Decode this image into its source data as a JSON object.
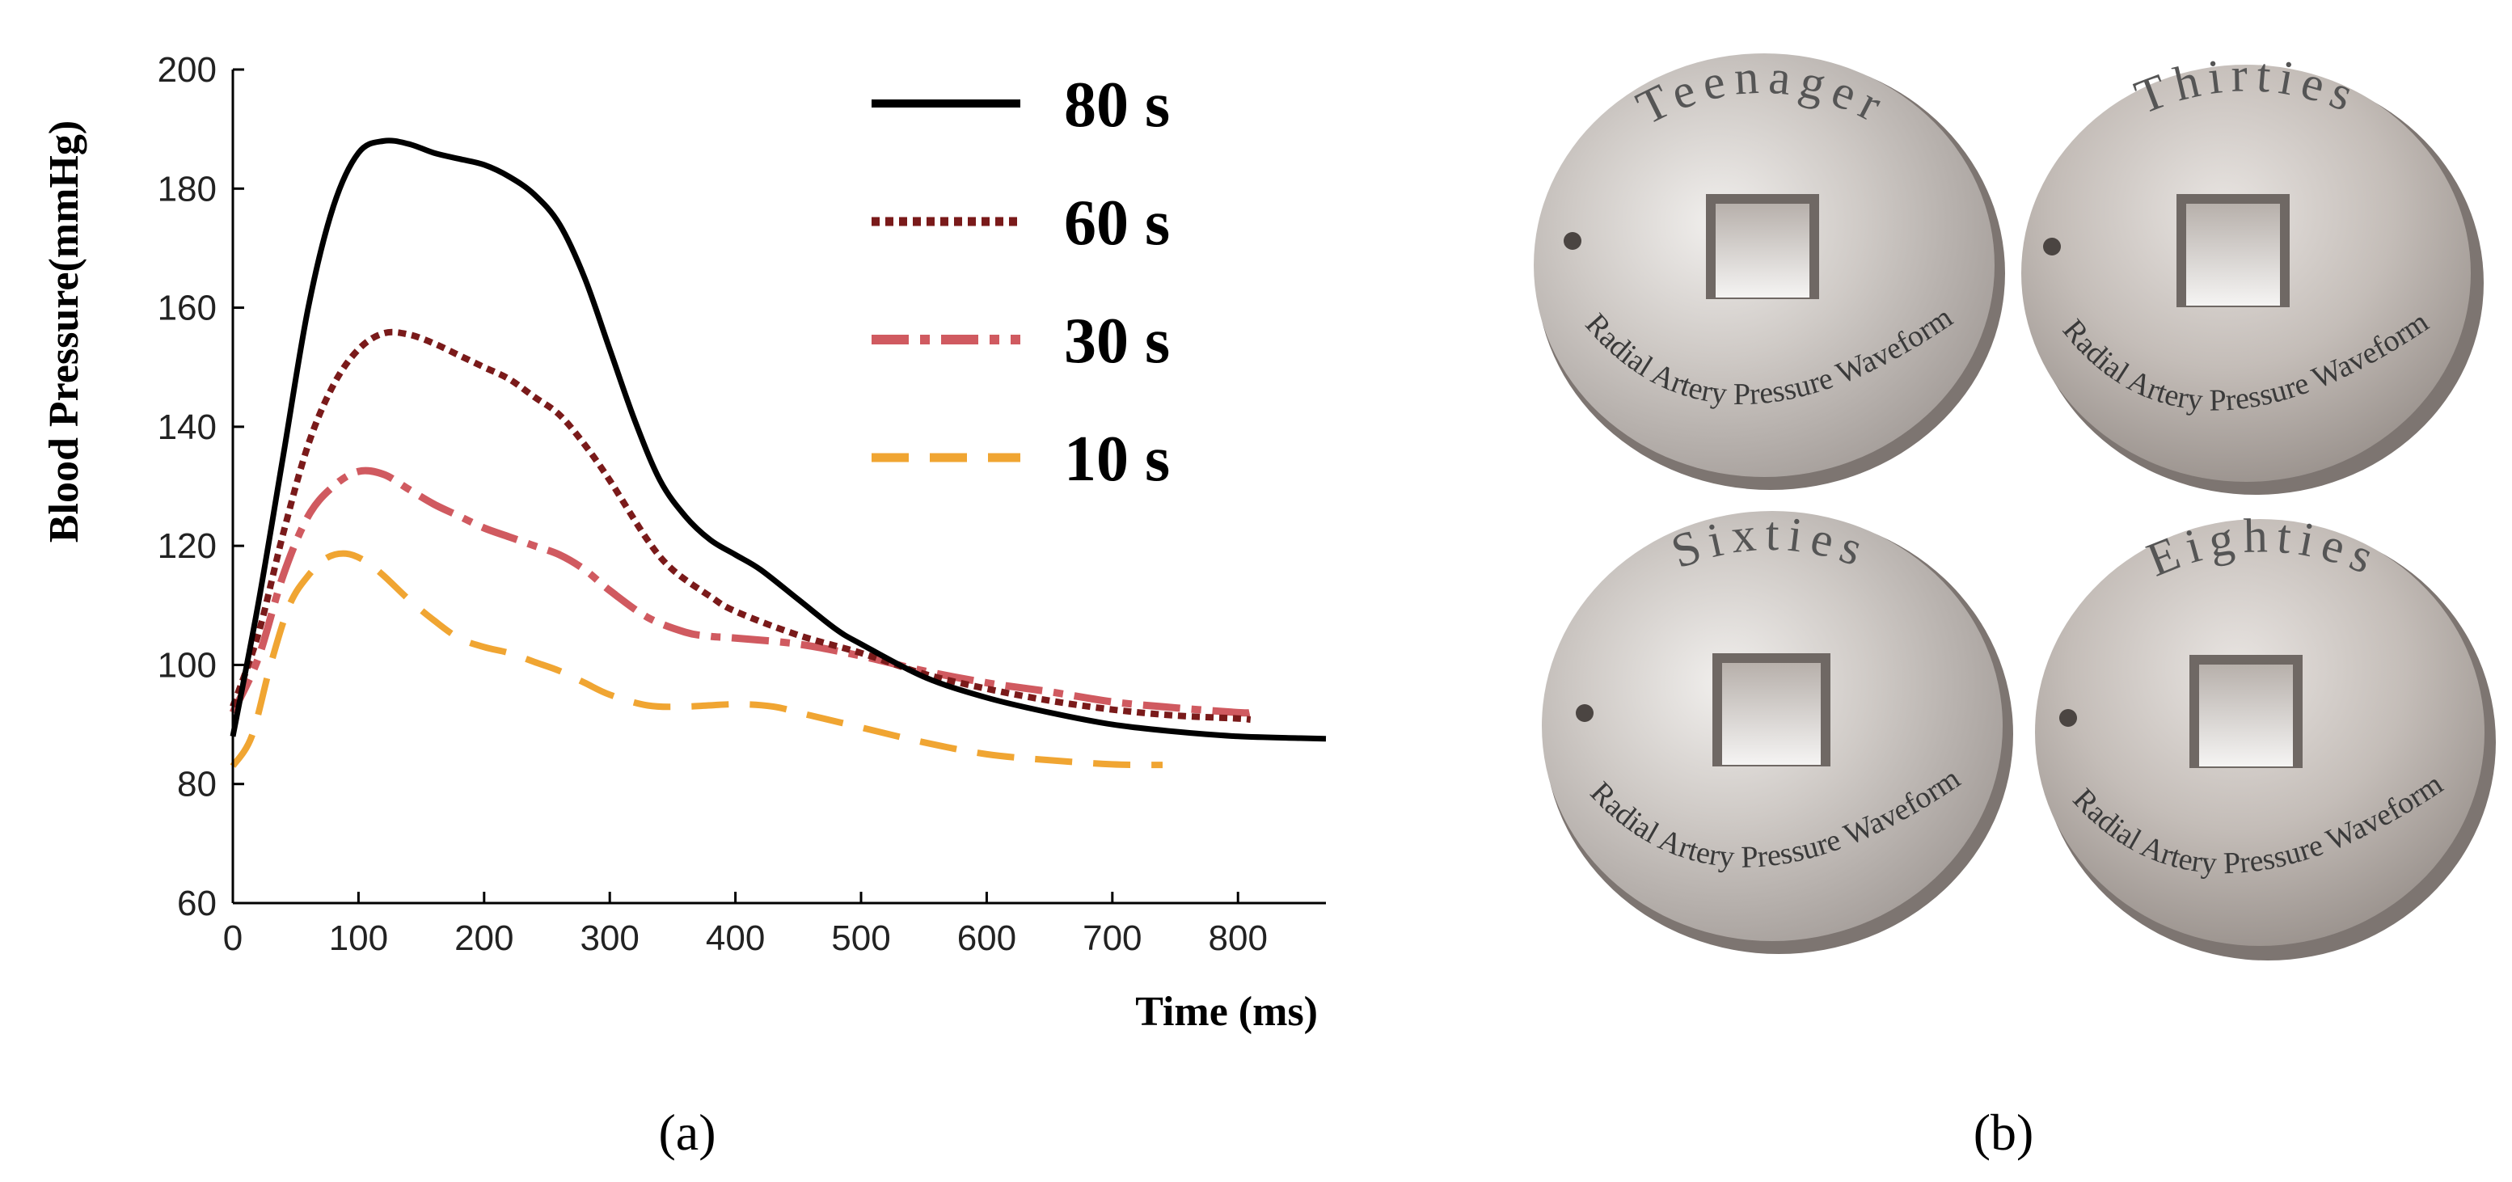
{
  "chart_data": {
    "type": "line",
    "title": "",
    "xlabel": "Time (ms)",
    "ylabel": "Blood Pressure(mmHg)",
    "xlim": [
      0,
      870
    ],
    "ylim": [
      60,
      200
    ],
    "xticks": [
      0,
      100,
      200,
      300,
      400,
      500,
      600,
      700,
      800
    ],
    "yticks": [
      60,
      80,
      100,
      120,
      140,
      160,
      180,
      200
    ],
    "legend_position": "top-right",
    "series": [
      {
        "name": "80 s",
        "color": "#000000",
        "style": "solid",
        "x": [
          0,
          20,
          40,
          60,
          80,
          100,
          120,
          140,
          160,
          180,
          200,
          220,
          240,
          260,
          280,
          300,
          320,
          340,
          360,
          380,
          400,
          420,
          450,
          480,
          500,
          550,
          600,
          650,
          700,
          750,
          800,
          850,
          870
        ],
        "y": [
          88,
          110,
          135,
          160,
          177,
          186,
          188,
          187.5,
          186,
          185,
          184,
          182,
          179,
          174,
          165,
          153,
          141,
          131,
          125,
          121,
          118.5,
          116,
          111,
          106,
          103.5,
          98,
          94.5,
          92,
          90,
          88.8,
          88,
          87.7,
          87.6
        ]
      },
      {
        "name": "60 s",
        "color": "#7a1a1a",
        "style": "dotted",
        "x": [
          0,
          20,
          40,
          60,
          80,
          100,
          120,
          140,
          160,
          180,
          200,
          220,
          240,
          260,
          280,
          300,
          330,
          350,
          380,
          400,
          450,
          500,
          550,
          600,
          650,
          700,
          750,
          800,
          810
        ],
        "y": [
          93,
          105,
          122,
          137,
          147,
          153,
          155.7,
          155.5,
          154,
          152,
          150,
          148,
          145,
          142,
          137,
          131,
          121,
          116,
          111.5,
          109,
          105,
          102,
          98.5,
          96,
          94,
          92.5,
          91.5,
          91,
          90.8
        ]
      },
      {
        "name": "30 s",
        "color": "#d05a60",
        "style": "dashdot",
        "x": [
          0,
          20,
          40,
          60,
          80,
          100,
          120,
          140,
          160,
          180,
          200,
          220,
          240,
          260,
          280,
          300,
          330,
          360,
          380,
          400,
          450,
          500,
          550,
          600,
          650,
          700,
          750,
          800,
          810
        ],
        "y": [
          92,
          101,
          115,
          125,
          130,
          132.5,
          132,
          129.5,
          127,
          125,
          123,
          121.5,
          120,
          118.5,
          116,
          112.5,
          108,
          105.5,
          104.8,
          104.5,
          103.5,
          101.5,
          99,
          97,
          95.5,
          93.8,
          92.8,
          92,
          92
        ]
      },
      {
        "name": "10 s",
        "color": "#f0a532",
        "style": "dashed",
        "x": [
          0,
          15,
          30,
          45,
          60,
          75,
          90,
          105,
          120,
          140,
          160,
          180,
          200,
          220,
          240,
          260,
          280,
          300,
          330,
          360,
          400,
          430,
          460,
          500,
          550,
          600,
          650,
          700,
          740
        ],
        "y": [
          83,
          88,
          100,
          110,
          115,
          118,
          118.7,
          117.5,
          115,
          111,
          107.5,
          104.5,
          103,
          102,
          100.5,
          99,
          97,
          95,
          93.2,
          93,
          93.4,
          93,
          91.5,
          89.5,
          87,
          85,
          84,
          83.3,
          83.2
        ]
      }
    ]
  },
  "panels": {
    "a_label": "(a)",
    "b_label": "(b)"
  },
  "photo": {
    "discs": [
      {
        "title": "Teenager",
        "subtitle": "Radial Artery Pressure Waveform"
      },
      {
        "title": "Thirties",
        "subtitle": "Radial Artery Pressure Waveform"
      },
      {
        "title": "Sixties",
        "subtitle": "Radial Artery Pressure Waveform"
      },
      {
        "title": "Eighties",
        "subtitle": "Radial Artery Pressure Waveform"
      }
    ]
  }
}
